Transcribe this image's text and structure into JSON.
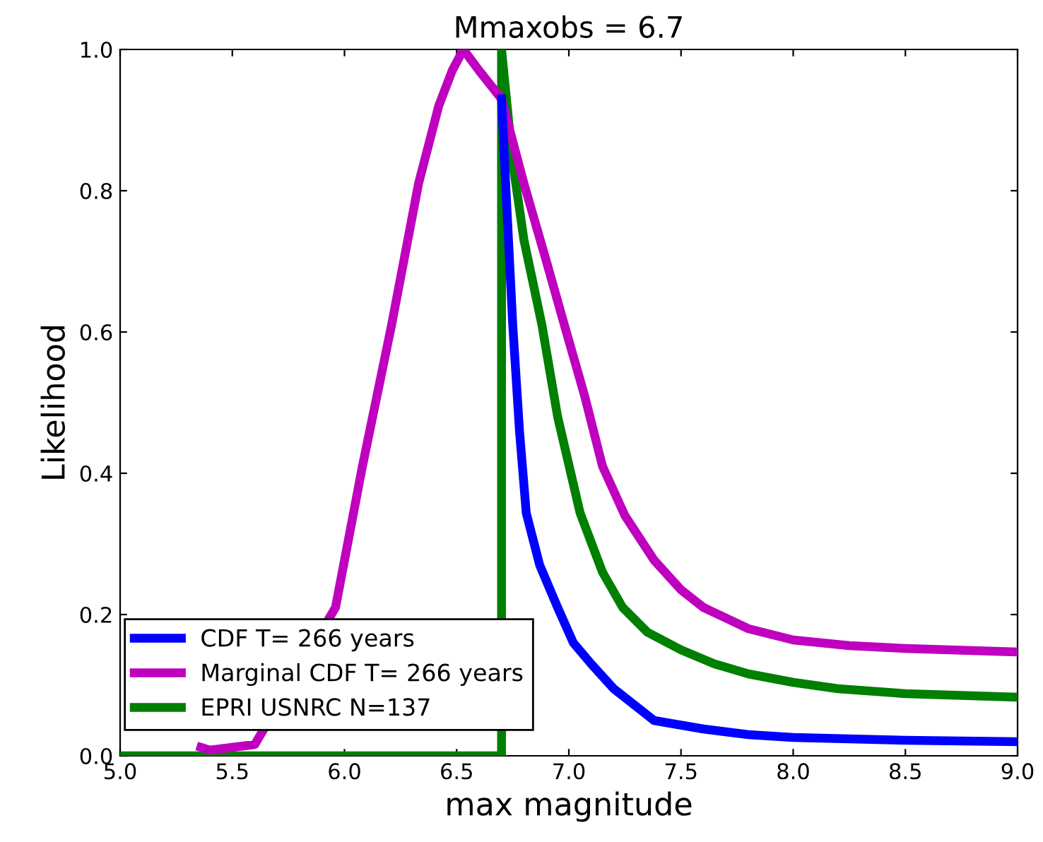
{
  "chart_data": {
    "type": "line",
    "title": "Mmaxobs = 6.7",
    "xlabel": "max magnitude",
    "ylabel": "Likelihood",
    "xlim": [
      5.0,
      9.0
    ],
    "ylim": [
      0.0,
      1.0
    ],
    "xticks": [
      {
        "value": 5.0,
        "label": "5.0"
      },
      {
        "value": 5.5,
        "label": "5.5"
      },
      {
        "value": 6.0,
        "label": "6.0"
      },
      {
        "value": 6.5,
        "label": "6.5"
      },
      {
        "value": 7.0,
        "label": "7.0"
      },
      {
        "value": 7.5,
        "label": "7.5"
      },
      {
        "value": 8.0,
        "label": "8.0"
      },
      {
        "value": 8.5,
        "label": "8.5"
      },
      {
        "value": 9.0,
        "label": "9.0"
      }
    ],
    "yticks": [
      {
        "value": 0.0,
        "label": "0.0"
      },
      {
        "value": 0.2,
        "label": "0.2"
      },
      {
        "value": 0.4,
        "label": "0.4"
      },
      {
        "value": 0.6,
        "label": "0.6"
      },
      {
        "value": 0.8,
        "label": "0.8"
      },
      {
        "value": 1.0,
        "label": "1.0"
      }
    ],
    "grid": false,
    "legend": "bottom left",
    "marker": "none",
    "line_style": "solid",
    "series": [
      {
        "name": "CDF T= 266 years",
        "color": "#0000ff",
        "x": [
          6.7,
          6.72,
          6.75,
          6.78,
          6.81,
          6.87,
          6.95,
          7.02,
          7.1,
          7.2,
          7.38,
          7.6,
          7.8,
          8.0,
          8.5,
          9.0
        ],
        "values": [
          0.93,
          0.8,
          0.61,
          0.46,
          0.344,
          0.27,
          0.21,
          0.16,
          0.13,
          0.095,
          0.05,
          0.038,
          0.03,
          0.026,
          0.022,
          0.02
        ]
      },
      {
        "name": "Marginal CDF T= 266 years",
        "color": "#bf00bf",
        "x": [
          5.36,
          5.4,
          5.5,
          5.6,
          5.96,
          6.08,
          6.21,
          6.33,
          6.42,
          6.48,
          6.53,
          6.6,
          6.65,
          6.7,
          6.8,
          6.9,
          6.98,
          7.07,
          7.15,
          7.25,
          7.38,
          7.5,
          7.6,
          7.8,
          8.0,
          8.25,
          8.5,
          9.0
        ],
        "values": [
          0.012,
          0.008,
          0.012,
          0.016,
          0.21,
          0.41,
          0.61,
          0.81,
          0.92,
          0.97,
          1.0,
          0.97,
          0.95,
          0.93,
          0.81,
          0.7,
          0.61,
          0.51,
          0.41,
          0.34,
          0.277,
          0.235,
          0.21,
          0.18,
          0.164,
          0.156,
          0.152,
          0.147
        ]
      },
      {
        "name": "EPRI USNRC N=137",
        "color": "#007f00",
        "x": [
          5.0,
          6.7,
          6.7,
          6.75,
          6.8,
          6.88,
          6.95,
          7.05,
          7.15,
          7.24,
          7.35,
          7.5,
          7.65,
          7.8,
          8.0,
          8.2,
          8.5,
          9.0
        ],
        "values": [
          0.0,
          0.0,
          1.0,
          0.84,
          0.73,
          0.61,
          0.48,
          0.344,
          0.26,
          0.21,
          0.175,
          0.15,
          0.13,
          0.116,
          0.104,
          0.095,
          0.088,
          0.083
        ]
      }
    ]
  }
}
